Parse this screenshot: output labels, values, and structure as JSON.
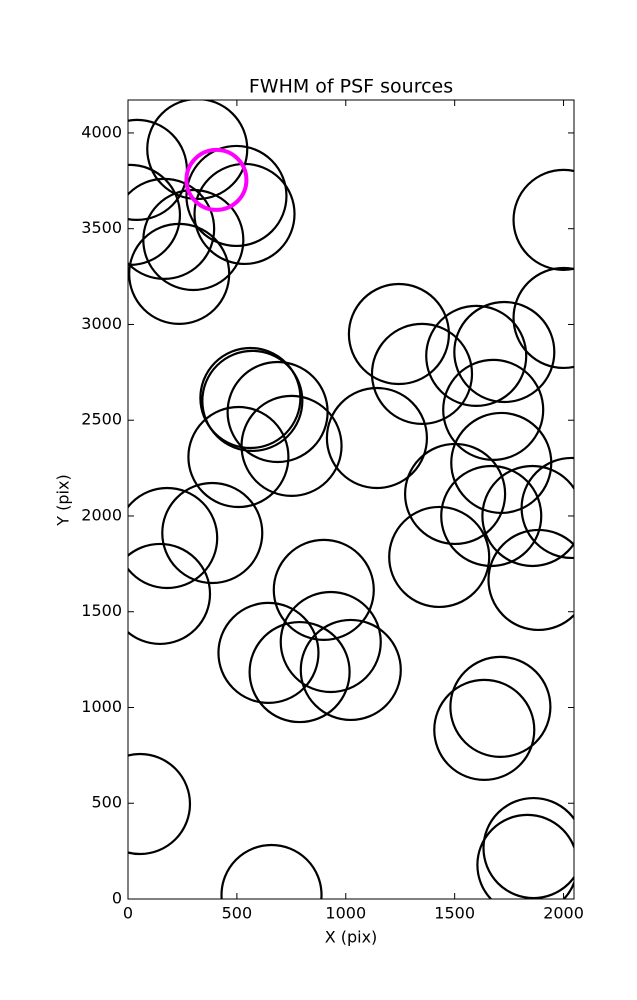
{
  "chart_data": {
    "type": "scatter",
    "title": "FWHM of PSF sources",
    "xlabel": "X (pix)",
    "ylabel": "Y (pix)",
    "xlim": [
      0,
      2048
    ],
    "ylim": [
      0,
      4172
    ],
    "xticks": [
      0,
      500,
      1000,
      1500,
      2000
    ],
    "yticks": [
      0,
      500,
      1000,
      1500,
      2000,
      2500,
      3000,
      3500,
      4000
    ],
    "series": [
      {
        "color": "#000000",
        "x": [
          41,
          318,
          9,
          166,
          300,
          235,
          498,
          535,
          2000,
          2000,
          1244,
          1350,
          1599,
          1728,
          1677,
          562,
          571,
          687,
          507,
          751,
          1143,
          1502,
          1714,
          1668,
          1857,
          2037,
          180,
          387,
          147,
          1429,
          1885,
          899,
          645,
          931,
          788,
          1023,
          1710,
          1636,
          55,
          1862,
          1834,
          659
        ],
        "values": [
          3807,
          3916,
          3572,
          3499,
          3441,
          3264,
          3671,
          3577,
          3546,
          3034,
          2950,
          2742,
          2836,
          2856,
          2554,
          2616,
          2601,
          2543,
          2308,
          2366,
          2407,
          2115,
          2277,
          2000,
          2000,
          2042,
          1885,
          1911,
          1593,
          1786,
          1666,
          1614,
          1285,
          1342,
          1185,
          1196,
          1003,
          883,
          496,
          266,
          178,
          21
        ]
      },
      {
        "color": "#ff00ff",
        "x": [
          406
        ],
        "values": [
          3755
        ]
      }
    ]
  }
}
